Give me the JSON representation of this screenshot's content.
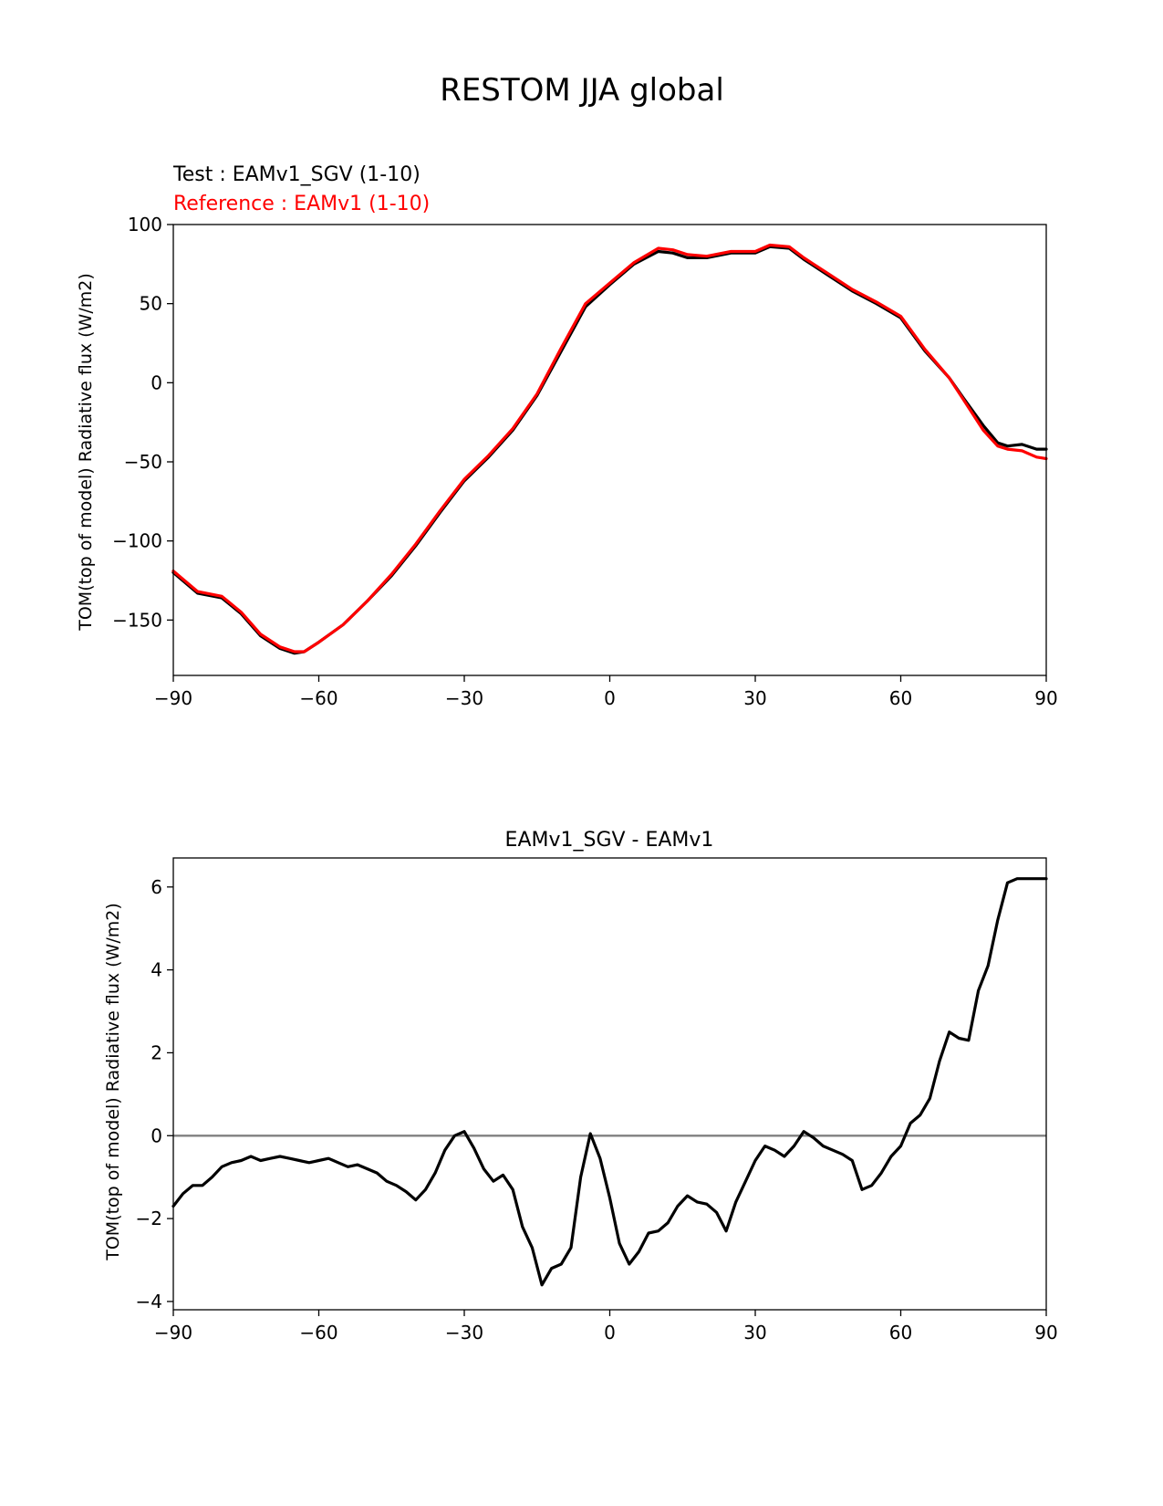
{
  "figure": {
    "title": "RESTOM JJA global"
  },
  "chart_data": [
    {
      "type": "line",
      "title": "",
      "test_label": "Test : EAMv1_SGV (1-10)",
      "reference_label": "Reference : EAMv1 (1-10)",
      "xlabel": "",
      "ylabel": "TOM(top of model) Radiative flux (W/m2)",
      "xlim": [
        -90,
        90
      ],
      "ylim": [
        -185,
        100
      ],
      "xticks": [
        -90,
        -60,
        -30,
        0,
        30,
        60,
        90
      ],
      "xtick_labels": [
        "−90",
        "−60",
        "−30",
        "0",
        "30",
        "60",
        "90"
      ],
      "yticks": [
        100,
        50,
        0,
        -50,
        -100,
        -150
      ],
      "ytick_labels": [
        "100",
        "50",
        "0",
        "−50",
        "−100",
        "−150"
      ],
      "grid": false,
      "colors": {
        "test": "#000000",
        "reference": "#ff0000"
      },
      "x": [
        -90,
        -85,
        -80,
        -76,
        -72,
        -68,
        -65,
        -63,
        -60,
        -55,
        -50,
        -45,
        -40,
        -35,
        -30,
        -25,
        -20,
        -15,
        -10,
        -5,
        0,
        5,
        10,
        13,
        16,
        20,
        25,
        30,
        33,
        37,
        40,
        45,
        50,
        55,
        60,
        65,
        70,
        73,
        77,
        80,
        82,
        85,
        88,
        90
      ],
      "series": [
        {
          "name": "EAMv1_SGV",
          "values": [
            -120,
            -133,
            -136,
            -146,
            -160,
            -168,
            -171,
            -170,
            -164,
            -153,
            -138,
            -122,
            -103,
            -82,
            -62,
            -47,
            -30,
            -8,
            20,
            48,
            62,
            75,
            83,
            82,
            79,
            79,
            82,
            82,
            86,
            85,
            78,
            68,
            58,
            50,
            41,
            20,
            3,
            -10,
            -27,
            -38,
            -40,
            -39,
            -42,
            -42
          ]
        },
        {
          "name": "EAMv1",
          "values": [
            -119,
            -132,
            -135,
            -145,
            -159,
            -167,
            -170,
            -170,
            -164,
            -153,
            -138,
            -121,
            -102,
            -81,
            -61,
            -46,
            -29,
            -7,
            22,
            50,
            63,
            76,
            85,
            84,
            81,
            80,
            83,
            83,
            87,
            86,
            79,
            69,
            59,
            51,
            42,
            21,
            3,
            -11,
            -30,
            -40,
            -42,
            -43,
            -47,
            -48
          ]
        }
      ]
    },
    {
      "type": "line",
      "title": "EAMv1_SGV - EAMv1",
      "xlabel": "",
      "ylabel": "TOM(top of model) Radiative flux (W/m2)",
      "xlim": [
        -90,
        90
      ],
      "ylim": [
        -4.2,
        6.7
      ],
      "xticks": [
        -90,
        -60,
        -30,
        0,
        30,
        60,
        90
      ],
      "xtick_labels": [
        "−90",
        "−60",
        "−30",
        "0",
        "30",
        "60",
        "90"
      ],
      "yticks": [
        6,
        4,
        2,
        0,
        -2,
        -4
      ],
      "ytick_labels": [
        "6",
        "4",
        "2",
        "0",
        "−2",
        "−4"
      ],
      "grid": false,
      "zero_line": 0,
      "colors": {
        "line": "#000000",
        "zero_line": "#808080"
      },
      "x": [
        -90,
        -88,
        -86,
        -84,
        -82,
        -80,
        -78,
        -76,
        -74,
        -72,
        -70,
        -68,
        -66,
        -64,
        -62,
        -60,
        -58,
        -56,
        -54,
        -52,
        -50,
        -48,
        -46,
        -44,
        -42,
        -40,
        -38,
        -36,
        -34,
        -32,
        -30,
        -28,
        -26,
        -24,
        -22,
        -20,
        -18,
        -16,
        -14,
        -12,
        -10,
        -8,
        -6,
        -4,
        -2,
        0,
        2,
        4,
        6,
        8,
        10,
        12,
        14,
        16,
        18,
        20,
        22,
        24,
        26,
        28,
        30,
        32,
        34,
        36,
        38,
        40,
        42,
        44,
        46,
        48,
        50,
        52,
        54,
        56,
        58,
        60,
        62,
        64,
        66,
        68,
        70,
        72,
        74,
        76,
        78,
        80,
        82,
        84,
        86,
        88,
        90
      ],
      "series": [
        {
          "name": "EAMv1_SGV - EAMv1",
          "values": [
            -1.7,
            -1.4,
            -1.2,
            -1.2,
            -1.0,
            -0.75,
            -0.65,
            -0.6,
            -0.5,
            -0.6,
            -0.55,
            -0.5,
            -0.55,
            -0.6,
            -0.65,
            -0.6,
            -0.55,
            -0.65,
            -0.75,
            -0.7,
            -0.8,
            -0.9,
            -1.1,
            -1.2,
            -1.35,
            -1.55,
            -1.3,
            -0.9,
            -0.35,
            0.0,
            0.1,
            -0.3,
            -0.8,
            -1.1,
            -0.95,
            -1.3,
            -2.2,
            -2.7,
            -3.6,
            -3.2,
            -3.1,
            -2.7,
            -1.0,
            0.05,
            -0.55,
            -1.5,
            -2.6,
            -3.1,
            -2.8,
            -2.35,
            -2.3,
            -2.1,
            -1.7,
            -1.45,
            -1.6,
            -1.65,
            -1.85,
            -2.3,
            -1.6,
            -1.1,
            -0.6,
            -0.25,
            -0.35,
            -0.5,
            -0.25,
            0.1,
            -0.05,
            -0.25,
            -0.35,
            -0.45,
            -0.6,
            -1.3,
            -1.2,
            -0.9,
            -0.5,
            -0.25,
            0.3,
            0.5,
            0.9,
            1.8,
            2.5,
            2.35,
            2.3,
            3.5,
            4.1,
            5.2,
            6.1,
            6.2,
            6.2,
            6.2,
            6.2
          ]
        }
      ]
    }
  ]
}
